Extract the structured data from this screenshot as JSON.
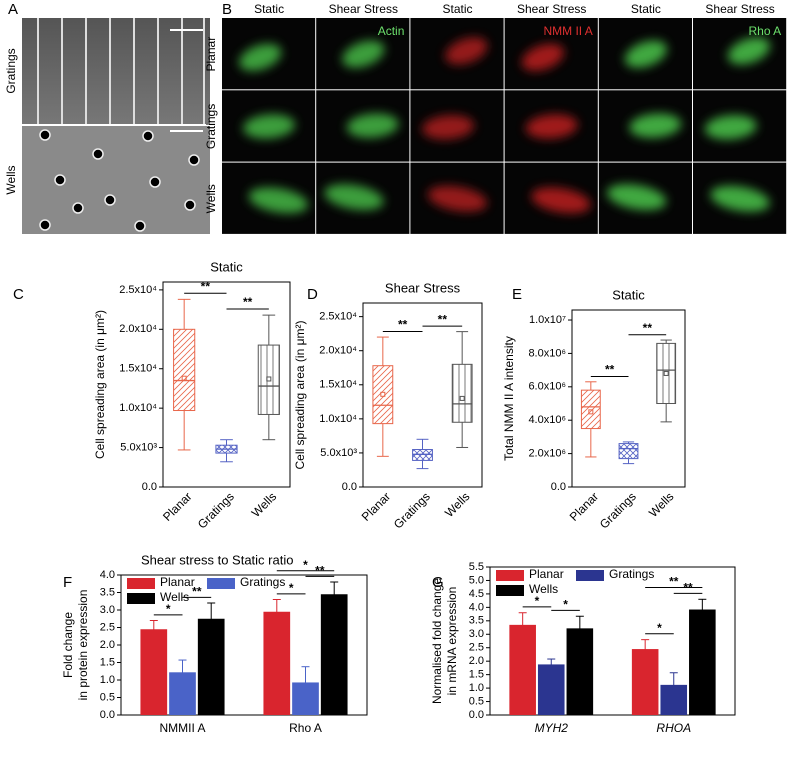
{
  "figure": {
    "A": {
      "label": "A",
      "rows": [
        "Gratings",
        "Wells"
      ]
    },
    "B": {
      "label": "B",
      "columns": [
        "Static",
        "Shear Stress",
        "Static",
        "Shear Stress",
        "Static",
        "Shear Stress"
      ],
      "rows": [
        "Planar",
        "Gratings",
        "Wells"
      ],
      "stains": [
        "Actin",
        "NMM II A",
        "Rho A"
      ]
    }
  },
  "chart_data": [
    {
      "type": "box",
      "panel": "C",
      "title": "Static",
      "ylabel": "Cell spreading area (in μm²)",
      "categories": [
        "Planar",
        "Gratings",
        "Wells"
      ],
      "colors": [
        "#e8664a",
        "#5563c4",
        "#555555"
      ],
      "hatches": [
        "diagonal",
        "cross",
        "vertical"
      ],
      "boxes": [
        {
          "min": 4700,
          "q1": 9700,
          "median": 13500,
          "q3": 20000,
          "max": 23800,
          "mean": 13800
        },
        {
          "min": 3200,
          "q1": 4300,
          "median": 4800,
          "q3": 5300,
          "max": 6000
        },
        {
          "min": 6000,
          "q1": 9200,
          "median": 12800,
          "q3": 18000,
          "max": 21800,
          "mean": 13700
        }
      ],
      "ylim": [
        0,
        26000
      ],
      "yticks": [
        {
          "value": 0,
          "label": "0.0"
        },
        {
          "value": 5000,
          "label": "5.0x10³"
        },
        {
          "value": 10000,
          "label": "1.0x10⁴"
        },
        {
          "value": 15000,
          "label": "1.5x10⁴"
        },
        {
          "value": 20000,
          "label": "2.0x10⁴"
        },
        {
          "value": 25000,
          "label": "2.5x10⁴"
        }
      ],
      "annotations": [
        {
          "text": "**",
          "between": [
            "Planar",
            "Gratings"
          ]
        },
        {
          "text": "**",
          "between": [
            "Gratings",
            "Wells"
          ]
        }
      ]
    },
    {
      "type": "box",
      "panel": "D",
      "title": "Shear Stress",
      "ylabel": "Cell spreading area (in μm²)",
      "categories": [
        "Planar",
        "Gratings",
        "Wells"
      ],
      "colors": [
        "#e8664a",
        "#5563c4",
        "#555555"
      ],
      "hatches": [
        "diagonal",
        "cross",
        "vertical"
      ],
      "boxes": [
        {
          "min": 4500,
          "q1": 9300,
          "median": 12000,
          "q3": 17800,
          "max": 22000,
          "mean": 13600
        },
        {
          "min": 2700,
          "q1": 3900,
          "median": 4800,
          "q3": 5500,
          "max": 7000
        },
        {
          "min": 5800,
          "q1": 9500,
          "median": 12200,
          "q3": 18000,
          "max": 22800,
          "mean": 13000
        }
      ],
      "ylim": [
        0,
        27000
      ],
      "yticks": [
        {
          "value": 0,
          "label": "0.0"
        },
        {
          "value": 5000,
          "label": "5.0x10³"
        },
        {
          "value": 10000,
          "label": "1.0x10⁴"
        },
        {
          "value": 15000,
          "label": "1.5x10⁴"
        },
        {
          "value": 20000,
          "label": "2.0x10⁴"
        },
        {
          "value": 25000,
          "label": "2.5x10⁴"
        }
      ],
      "annotations": [
        {
          "text": "**",
          "between": [
            "Planar",
            "Gratings"
          ]
        },
        {
          "text": "**",
          "between": [
            "Gratings",
            "Wells"
          ]
        }
      ]
    },
    {
      "type": "box",
      "panel": "E",
      "title": "Static",
      "ylabel": "Total NMM II A intensity",
      "categories": [
        "Planar",
        "Gratings",
        "Wells"
      ],
      "colors": [
        "#e8664a",
        "#5563c4",
        "#555555"
      ],
      "hatches": [
        "diagonal",
        "cross",
        "vertical"
      ],
      "boxes": [
        {
          "min": 1800000,
          "q1": 3500000,
          "median": 4800000,
          "q3": 5800000,
          "max": 6300000,
          "mean": 4500000
        },
        {
          "min": 1400000,
          "q1": 1700000,
          "median": 2300000,
          "q3": 2600000,
          "max": 2700000
        },
        {
          "min": 3900000,
          "q1": 5000000,
          "median": 7000000,
          "q3": 8600000,
          "max": 8800000,
          "mean": 6800000
        }
      ],
      "ylim": [
        0,
        10600000
      ],
      "yticks": [
        {
          "value": 0,
          "label": "0.0"
        },
        {
          "value": 2000000,
          "label": "2.0x10⁶"
        },
        {
          "value": 4000000,
          "label": "4.0x10⁶"
        },
        {
          "value": 6000000,
          "label": "6.0x10⁶"
        },
        {
          "value": 8000000,
          "label": "8.0x10⁶"
        },
        {
          "value": 10000000,
          "label": "1.0x10⁷"
        }
      ],
      "annotations": [
        {
          "text": "**",
          "between": [
            "Planar",
            "Gratings"
          ]
        },
        {
          "text": "**",
          "between": [
            "Gratings",
            "Wells"
          ]
        }
      ]
    },
    {
      "type": "bar",
      "panel": "F",
      "title": "Shear stress to Static ratio",
      "ylabel": [
        "Fold change",
        "in protein expression"
      ],
      "categories": [
        "NMMII A",
        "Rho A"
      ],
      "italic": false,
      "series": [
        {
          "name": "Planar",
          "color": "#d9252e",
          "values": [
            2.45,
            2.95
          ],
          "errors": [
            0.25,
            0.35
          ]
        },
        {
          "name": "Gratings",
          "color": "#4a63c8",
          "values": [
            1.22,
            0.93
          ],
          "errors": [
            0.35,
            0.45
          ]
        },
        {
          "name": "Wells",
          "color": "#000000",
          "values": [
            2.75,
            3.45
          ],
          "errors": [
            0.45,
            0.35
          ]
        }
      ],
      "ylim": [
        0,
        4
      ],
      "yticks": [
        {
          "value": 0,
          "label": "0.0"
        },
        {
          "value": 0.5,
          "label": "0.5"
        },
        {
          "value": 1,
          "label": "1.0"
        },
        {
          "value": 1.5,
          "label": "1.5"
        },
        {
          "value": 2,
          "label": "2.0"
        },
        {
          "value": 2.5,
          "label": "2.5"
        },
        {
          "value": 3,
          "label": "3.0"
        },
        {
          "value": 3.5,
          "label": "3.5"
        },
        {
          "value": 4,
          "label": "4.0"
        }
      ],
      "annotations": [
        {
          "text": "*",
          "category": "NMMII A",
          "between": [
            "Planar",
            "Gratings"
          ]
        },
        {
          "text": "**",
          "category": "NMMII A",
          "between": [
            "Gratings",
            "Wells"
          ]
        },
        {
          "text": "*",
          "category": "Rho A",
          "between": [
            "Planar",
            "Gratings"
          ]
        },
        {
          "text": "**",
          "category": "Rho A",
          "between": [
            "Gratings",
            "Wells"
          ]
        },
        {
          "text": "*",
          "category": "Rho A",
          "between": [
            "Planar",
            "Wells"
          ]
        }
      ]
    },
    {
      "type": "bar",
      "panel": "G",
      "ylabel": [
        "Normalised fold change",
        "in mRNA expression"
      ],
      "categories": [
        "MYH2",
        "RHOA"
      ],
      "italic": true,
      "series": [
        {
          "name": "Planar",
          "color": "#d9252e",
          "values": [
            3.35,
            2.45
          ],
          "errors": [
            0.45,
            0.35
          ]
        },
        {
          "name": "Gratings",
          "color": "#2b3590",
          "values": [
            1.88,
            1.12
          ],
          "errors": [
            0.2,
            0.45
          ]
        },
        {
          "name": "Wells",
          "color": "#000000",
          "values": [
            3.22,
            3.92
          ],
          "errors": [
            0.45,
            0.38
          ]
        }
      ],
      "ylim": [
        0,
        5.5
      ],
      "yticks": [
        {
          "value": 0,
          "label": "0.0"
        },
        {
          "value": 0.5,
          "label": "0.5"
        },
        {
          "value": 1,
          "label": "1.0"
        },
        {
          "value": 1.5,
          "label": "1.5"
        },
        {
          "value": 2,
          "label": "2.0"
        },
        {
          "value": 2.5,
          "label": "2.5"
        },
        {
          "value": 3,
          "label": "3.0"
        },
        {
          "value": 3.5,
          "label": "3.5"
        },
        {
          "value": 4,
          "label": "4.0"
        },
        {
          "value": 4.5,
          "label": "4.5"
        },
        {
          "value": 5,
          "label": "5.0"
        },
        {
          "value": 5.5,
          "label": "5.5"
        }
      ],
      "annotations": [
        {
          "text": "*",
          "category": "MYH2",
          "between": [
            "Planar",
            "Gratings"
          ]
        },
        {
          "text": "*",
          "category": "MYH2",
          "between": [
            "Gratings",
            "Wells"
          ]
        },
        {
          "text": "*",
          "category": "RHOA",
          "between": [
            "Planar",
            "Gratings"
          ]
        },
        {
          "text": "**",
          "category": "RHOA",
          "between": [
            "Gratings",
            "Wells"
          ]
        },
        {
          "text": "**",
          "category": "RHOA",
          "between": [
            "Planar",
            "Wells"
          ]
        }
      ]
    }
  ]
}
